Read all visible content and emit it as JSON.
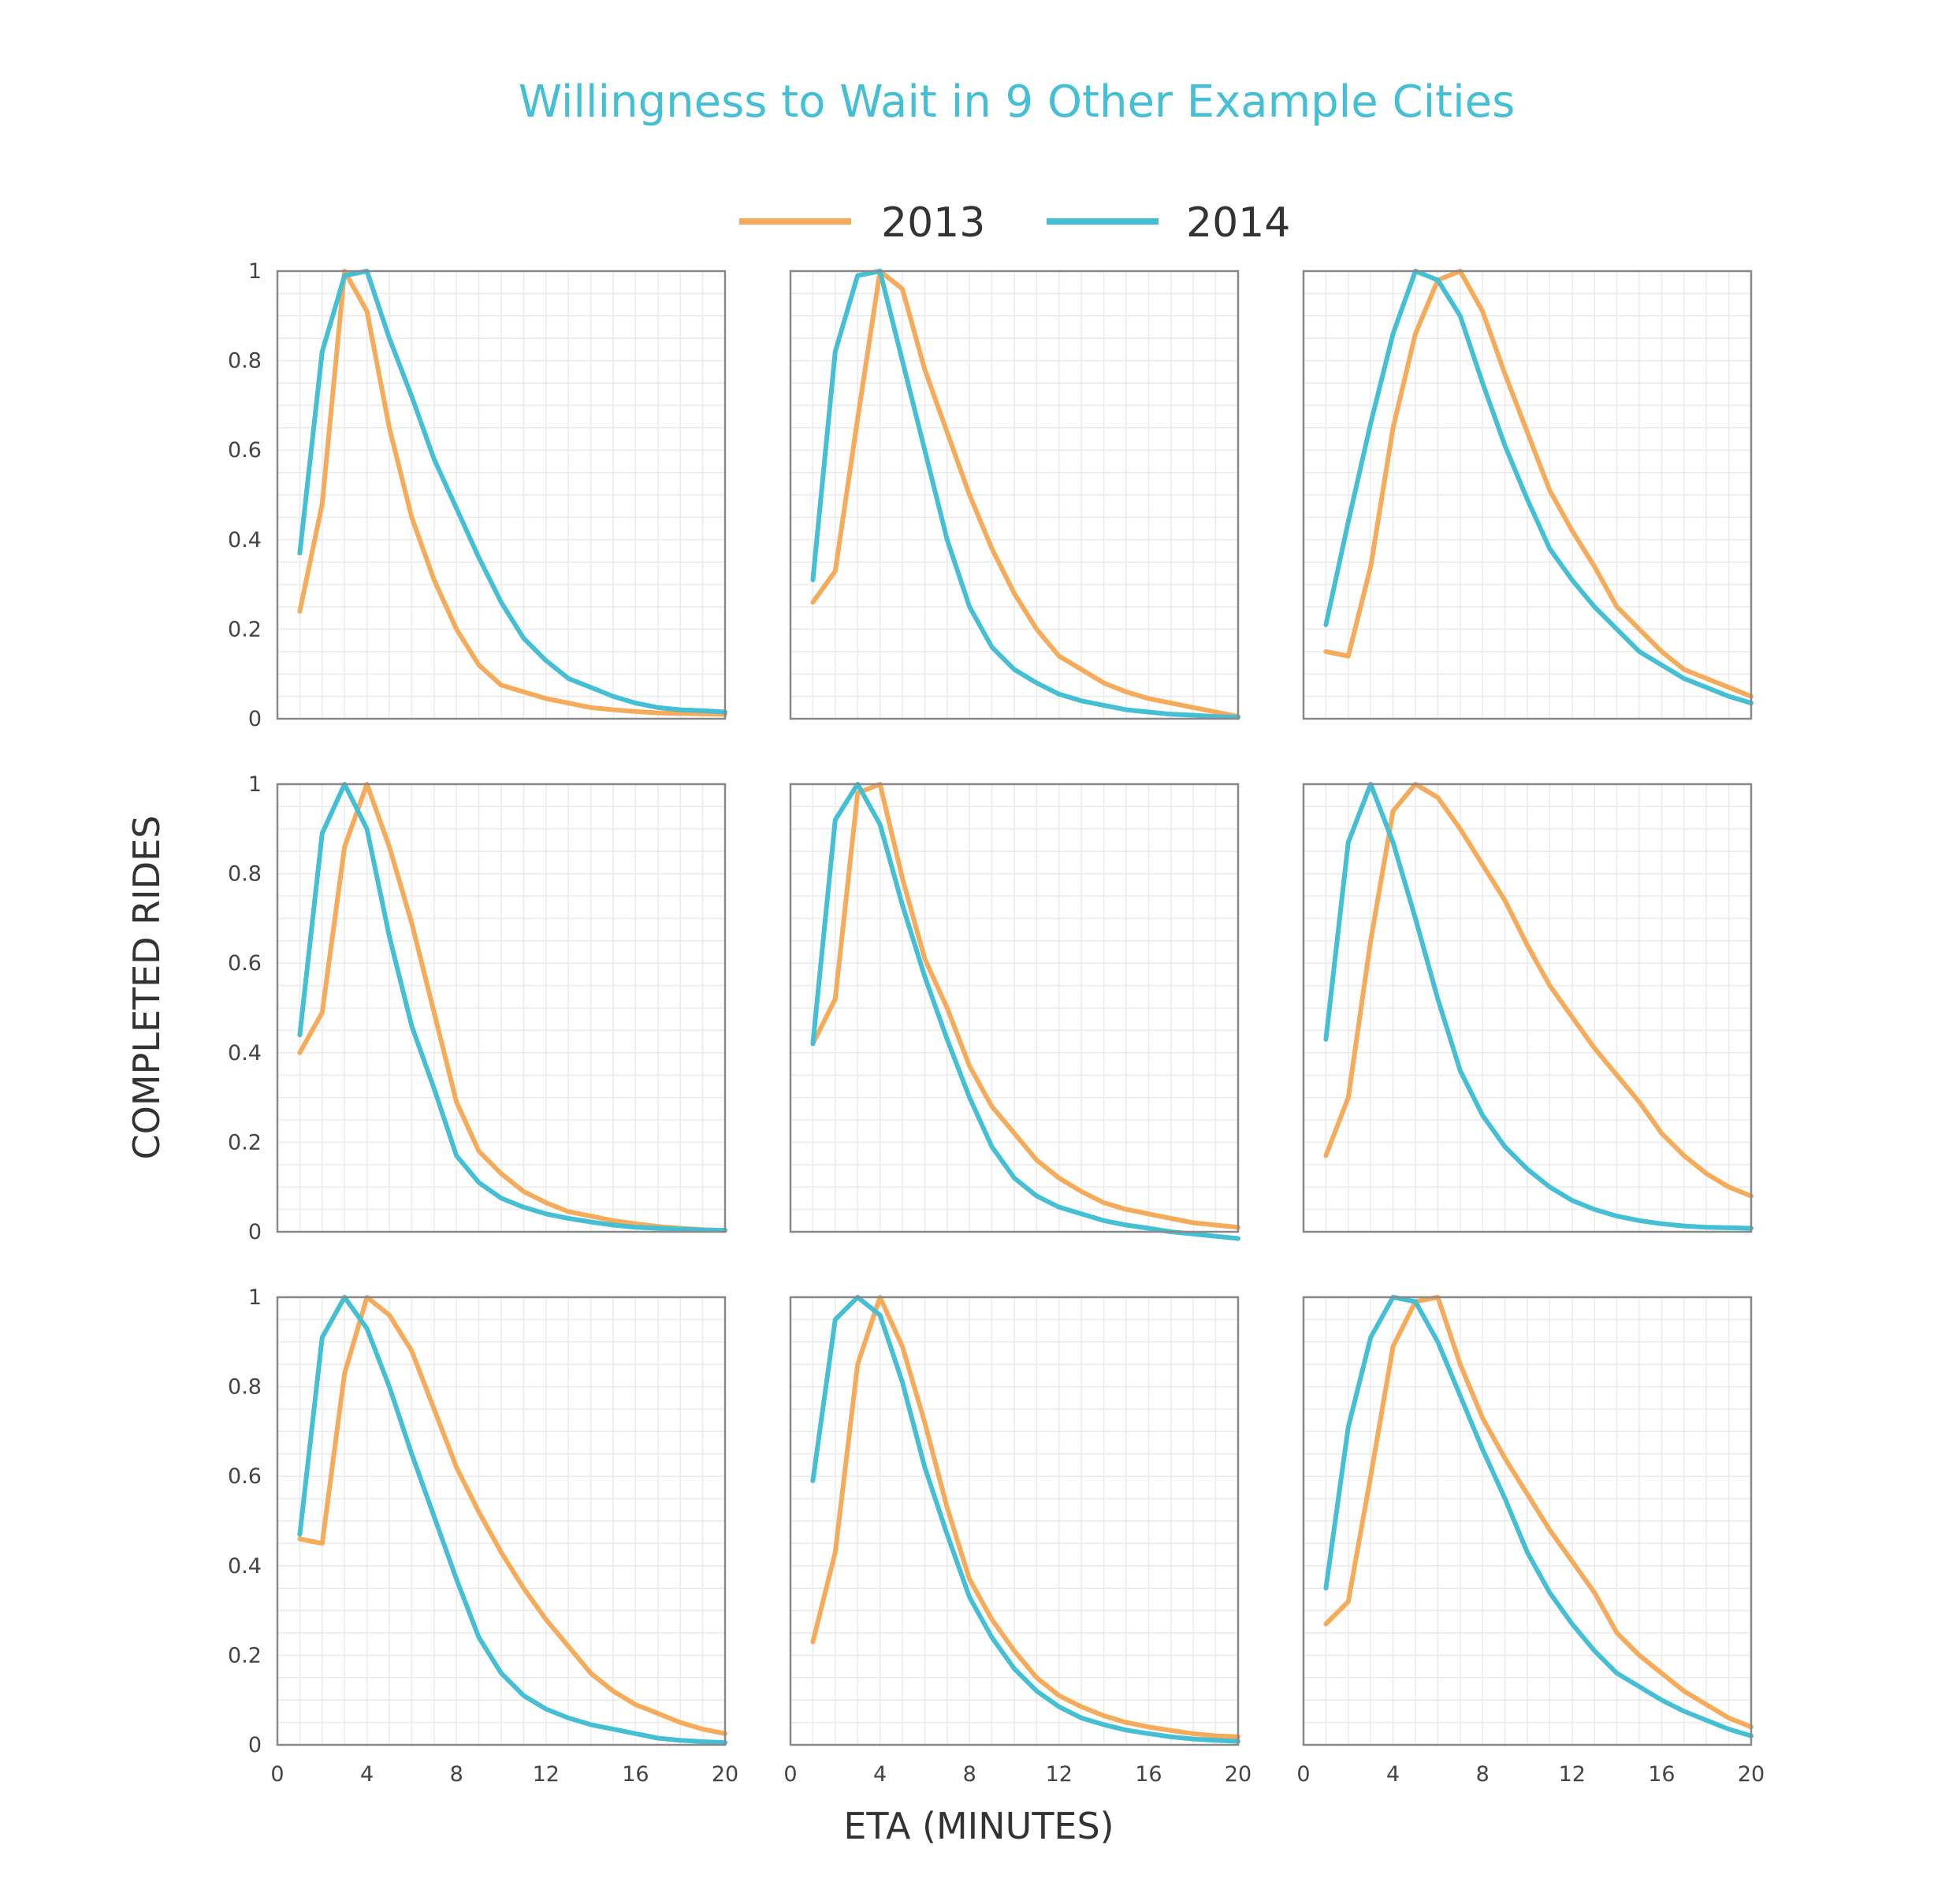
{
  "title": "Willingness to Wait in 9 Other Example Cities",
  "xlabel": "ETA (MINUTES)",
  "ylabel": "COMPLETED RIDES",
  "legend": [
    {
      "name": "2013",
      "color": "#F5AB5A"
    },
    {
      "name": "2014",
      "color": "#45BFD3"
    }
  ],
  "x_ticks": [
    "0",
    "4",
    "8",
    "12",
    "16",
    "20"
  ],
  "y_ticks": [
    "0",
    "0.2",
    "0.4",
    "0.6",
    "0.8",
    "1"
  ],
  "chart_data": {
    "type": "line",
    "layout": "3x3 small multiples",
    "xlim": [
      0,
      20
    ],
    "ylim": [
      0,
      1
    ],
    "grid": true,
    "legend_position": "top-center",
    "x": [
      1,
      2,
      3,
      4,
      5,
      6,
      7,
      8,
      9,
      10,
      11,
      12,
      13,
      14,
      15,
      16,
      17,
      18,
      19,
      20
    ],
    "panels": [
      {
        "series": [
          {
            "name": "2013",
            "values": [
              0.24,
              0.48,
              1.0,
              0.91,
              0.65,
              0.45,
              0.31,
              0.2,
              0.12,
              0.075,
              0.06,
              0.045,
              0.035,
              0.025,
              0.02,
              0.016,
              0.013,
              0.012,
              0.011,
              0.01
            ]
          },
          {
            "name": "2014",
            "values": [
              0.37,
              0.82,
              0.99,
              1.0,
              0.85,
              0.72,
              0.58,
              0.47,
              0.36,
              0.26,
              0.18,
              0.13,
              0.09,
              0.07,
              0.05,
              0.035,
              0.025,
              0.02,
              0.018,
              0.015
            ]
          }
        ]
      },
      {
        "series": [
          {
            "name": "2013",
            "values": [
              0.26,
              0.33,
              0.67,
              1.0,
              0.96,
              0.78,
              0.64,
              0.5,
              0.38,
              0.28,
              0.2,
              0.14,
              0.11,
              0.08,
              0.06,
              0.045,
              0.035,
              0.025,
              0.015,
              0.005
            ]
          },
          {
            "name": "2014",
            "values": [
              0.31,
              0.82,
              0.99,
              1.0,
              0.8,
              0.6,
              0.4,
              0.25,
              0.16,
              0.11,
              0.08,
              0.055,
              0.04,
              0.03,
              0.02,
              0.015,
              0.01,
              0.008,
              0.005,
              0.003
            ]
          }
        ]
      },
      {
        "series": [
          {
            "name": "2013",
            "values": [
              0.15,
              0.14,
              0.34,
              0.65,
              0.86,
              0.98,
              1.0,
              0.91,
              0.77,
              0.64,
              0.51,
              0.42,
              0.34,
              0.25,
              0.2,
              0.15,
              0.11,
              0.09,
              0.07,
              0.05
            ]
          },
          {
            "name": "2014",
            "values": [
              0.21,
              0.44,
              0.66,
              0.86,
              1.0,
              0.98,
              0.9,
              0.75,
              0.61,
              0.49,
              0.38,
              0.31,
              0.25,
              0.2,
              0.15,
              0.12,
              0.09,
              0.07,
              0.05,
              0.035
            ]
          }
        ]
      },
      {
        "series": [
          {
            "name": "2013",
            "values": [
              0.4,
              0.49,
              0.86,
              1.0,
              0.86,
              0.69,
              0.49,
              0.29,
              0.18,
              0.13,
              0.09,
              0.065,
              0.045,
              0.035,
              0.025,
              0.018,
              0.012,
              0.008,
              0.005,
              0.003
            ]
          },
          {
            "name": "2014",
            "values": [
              0.44,
              0.89,
              1.0,
              0.9,
              0.66,
              0.46,
              0.32,
              0.17,
              0.11,
              0.075,
              0.055,
              0.04,
              0.03,
              0.022,
              0.015,
              0.01,
              0.008,
              0.006,
              0.004,
              0.003
            ]
          }
        ]
      },
      {
        "series": [
          {
            "name": "2013",
            "values": [
              0.42,
              0.52,
              0.98,
              1.0,
              0.79,
              0.61,
              0.5,
              0.37,
              0.28,
              0.22,
              0.16,
              0.12,
              0.09,
              0.065,
              0.05,
              0.04,
              0.03,
              0.02,
              0.015,
              0.01
            ]
          },
          {
            "name": "2014",
            "values": [
              0.42,
              0.92,
              1.0,
              0.91,
              0.73,
              0.57,
              0.43,
              0.3,
              0.19,
              0.12,
              0.08,
              0.055,
              0.04,
              0.025,
              0.015,
              0.008,
              0.0,
              -0.005,
              -0.01,
              -0.015
            ]
          }
        ]
      },
      {
        "series": [
          {
            "name": "2013",
            "values": [
              0.17,
              0.3,
              0.65,
              0.94,
              1.0,
              0.97,
              0.9,
              0.82,
              0.74,
              0.64,
              0.55,
              0.48,
              0.41,
              0.35,
              0.29,
              0.22,
              0.17,
              0.13,
              0.1,
              0.08
            ]
          },
          {
            "name": "2014",
            "values": [
              0.43,
              0.87,
              1.0,
              0.87,
              0.7,
              0.52,
              0.36,
              0.26,
              0.19,
              0.14,
              0.1,
              0.07,
              0.05,
              0.035,
              0.025,
              0.018,
              0.013,
              0.01,
              0.009,
              0.008
            ]
          }
        ]
      },
      {
        "series": [
          {
            "name": "2013",
            "values": [
              0.46,
              0.45,
              0.83,
              1.0,
              0.96,
              0.88,
              0.75,
              0.62,
              0.52,
              0.43,
              0.35,
              0.28,
              0.22,
              0.16,
              0.12,
              0.09,
              0.07,
              0.05,
              0.035,
              0.025
            ]
          },
          {
            "name": "2014",
            "values": [
              0.47,
              0.91,
              1.0,
              0.93,
              0.8,
              0.65,
              0.51,
              0.37,
              0.24,
              0.16,
              0.11,
              0.08,
              0.06,
              0.045,
              0.035,
              0.025,
              0.015,
              0.01,
              0.007,
              0.005
            ]
          }
        ]
      },
      {
        "series": [
          {
            "name": "2013",
            "values": [
              0.23,
              0.43,
              0.85,
              1.0,
              0.89,
              0.72,
              0.53,
              0.37,
              0.28,
              0.21,
              0.15,
              0.11,
              0.085,
              0.065,
              0.05,
              0.04,
              0.032,
              0.025,
              0.02,
              0.018
            ]
          },
          {
            "name": "2014",
            "values": [
              0.59,
              0.95,
              1.0,
              0.96,
              0.81,
              0.62,
              0.47,
              0.33,
              0.24,
              0.17,
              0.12,
              0.085,
              0.06,
              0.045,
              0.033,
              0.025,
              0.018,
              0.013,
              0.01,
              0.008
            ]
          }
        ]
      },
      {
        "series": [
          {
            "name": "2013",
            "values": [
              0.27,
              0.32,
              0.6,
              0.89,
              0.99,
              1.0,
              0.85,
              0.73,
              0.64,
              0.56,
              0.48,
              0.41,
              0.34,
              0.25,
              0.2,
              0.16,
              0.12,
              0.09,
              0.06,
              0.04
            ]
          },
          {
            "name": "2014",
            "values": [
              0.35,
              0.71,
              0.91,
              1.0,
              0.99,
              0.9,
              0.78,
              0.66,
              0.55,
              0.43,
              0.34,
              0.27,
              0.21,
              0.16,
              0.13,
              0.1,
              0.075,
              0.055,
              0.035,
              0.02
            ]
          }
        ]
      }
    ]
  }
}
